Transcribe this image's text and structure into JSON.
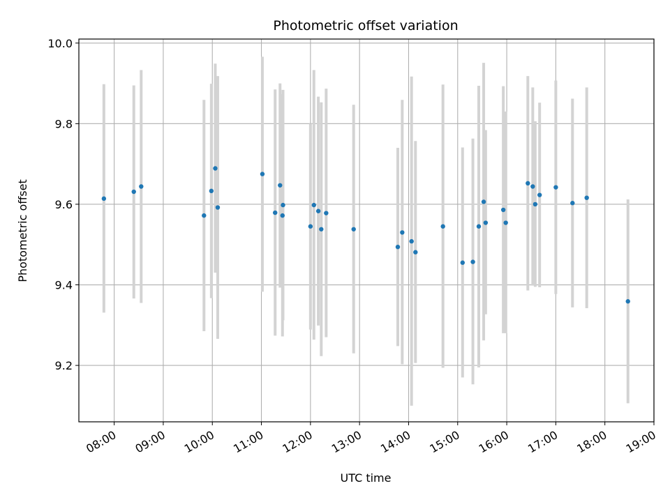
{
  "chart_data": {
    "type": "scatter",
    "title": "Photometric offset variation",
    "xlabel": "UTC time",
    "ylabel": "Photometric offset",
    "x_unit": "hours UTC",
    "xlim": [
      7.28,
      19.0
    ],
    "ylim": [
      9.06,
      10.01
    ],
    "x_ticks": [
      {
        "value": 8,
        "label": "08:00"
      },
      {
        "value": 9,
        "label": "09:00"
      },
      {
        "value": 10,
        "label": "10:00"
      },
      {
        "value": 11,
        "label": "11:00"
      },
      {
        "value": 12,
        "label": "12:00"
      },
      {
        "value": 13,
        "label": "13:00"
      },
      {
        "value": 14,
        "label": "14:00"
      },
      {
        "value": 15,
        "label": "15:00"
      },
      {
        "value": 16,
        "label": "16:00"
      },
      {
        "value": 17,
        "label": "17:00"
      },
      {
        "value": 18,
        "label": "18:00"
      },
      {
        "value": 19,
        "label": "19:00"
      }
    ],
    "y_ticks": [
      {
        "value": 9.2,
        "label": "9.2"
      },
      {
        "value": 9.4,
        "label": "9.4"
      },
      {
        "value": 9.6,
        "label": "9.6"
      },
      {
        "value": 9.8,
        "label": "9.8"
      },
      {
        "value": 10.0,
        "label": "10.0"
      }
    ],
    "grid": true,
    "colors": {
      "point": "#1f77b4",
      "errorbar": "#d3d3d3",
      "grid": "#b0b0b0"
    },
    "points": [
      {
        "x": 7.79,
        "y": 9.614,
        "lo": 9.331,
        "hi": 9.898
      },
      {
        "x": 8.4,
        "y": 9.631,
        "lo": 9.366,
        "hi": 9.895
      },
      {
        "x": 8.55,
        "y": 9.644,
        "lo": 9.355,
        "hi": 9.933
      },
      {
        "x": 9.83,
        "y": 9.572,
        "lo": 9.285,
        "hi": 9.859
      },
      {
        "x": 9.98,
        "y": 9.633,
        "lo": 9.367,
        "hi": 9.899
      },
      {
        "x": 10.06,
        "y": 9.689,
        "lo": 9.43,
        "hi": 9.949
      },
      {
        "x": 10.11,
        "y": 9.592,
        "lo": 9.266,
        "hi": 9.918
      },
      {
        "x": 11.02,
        "y": 9.675,
        "lo": 9.383,
        "hi": 9.966
      },
      {
        "x": 11.28,
        "y": 9.579,
        "lo": 9.274,
        "hi": 9.885
      },
      {
        "x": 11.38,
        "y": 9.647,
        "lo": 9.393,
        "hi": 9.9
      },
      {
        "x": 11.44,
        "y": 9.598,
        "lo": 9.312,
        "hi": 9.884
      },
      {
        "x": 11.43,
        "y": 9.572,
        "lo": 9.272,
        "hi": 9.873
      },
      {
        "x": 12.0,
        "y": 9.545,
        "lo": 9.289,
        "hi": 9.8
      },
      {
        "x": 12.07,
        "y": 9.598,
        "lo": 9.264,
        "hi": 9.933
      },
      {
        "x": 12.16,
        "y": 9.583,
        "lo": 9.299,
        "hi": 9.867
      },
      {
        "x": 12.22,
        "y": 9.538,
        "lo": 9.223,
        "hi": 9.853
      },
      {
        "x": 12.32,
        "y": 9.578,
        "lo": 9.27,
        "hi": 9.887
      },
      {
        "x": 12.88,
        "y": 9.538,
        "lo": 9.23,
        "hi": 9.847
      },
      {
        "x": 13.78,
        "y": 9.494,
        "lo": 9.248,
        "hi": 9.74
      },
      {
        "x": 13.87,
        "y": 9.53,
        "lo": 9.203,
        "hi": 9.859
      },
      {
        "x": 14.06,
        "y": 9.508,
        "lo": 9.1,
        "hi": 9.917
      },
      {
        "x": 14.14,
        "y": 9.481,
        "lo": 9.206,
        "hi": 9.757
      },
      {
        "x": 14.7,
        "y": 9.545,
        "lo": 9.194,
        "hi": 9.897
      },
      {
        "x": 15.1,
        "y": 9.455,
        "lo": 9.17,
        "hi": 9.741
      },
      {
        "x": 15.31,
        "y": 9.457,
        "lo": 9.153,
        "hi": 9.763
      },
      {
        "x": 15.43,
        "y": 9.545,
        "lo": 9.195,
        "hi": 9.894
      },
      {
        "x": 15.53,
        "y": 9.606,
        "lo": 9.262,
        "hi": 9.951
      },
      {
        "x": 15.57,
        "y": 9.554,
        "lo": 9.327,
        "hi": 9.784
      },
      {
        "x": 15.93,
        "y": 9.586,
        "lo": 9.28,
        "hi": 9.893
      },
      {
        "x": 15.98,
        "y": 9.554,
        "lo": 9.28,
        "hi": 9.83
      },
      {
        "x": 16.43,
        "y": 9.652,
        "lo": 9.386,
        "hi": 9.918
      },
      {
        "x": 16.53,
        "y": 9.644,
        "lo": 9.398,
        "hi": 9.89
      },
      {
        "x": 16.58,
        "y": 9.6,
        "lo": 9.395,
        "hi": 9.806
      },
      {
        "x": 16.67,
        "y": 9.623,
        "lo": 9.394,
        "hi": 9.852
      },
      {
        "x": 17.0,
        "y": 9.642,
        "lo": 9.377,
        "hi": 9.907
      },
      {
        "x": 17.34,
        "y": 9.603,
        "lo": 9.344,
        "hi": 9.862
      },
      {
        "x": 17.63,
        "y": 9.616,
        "lo": 9.342,
        "hi": 9.89
      },
      {
        "x": 18.47,
        "y": 9.359,
        "lo": 9.106,
        "hi": 9.612
      }
    ]
  }
}
